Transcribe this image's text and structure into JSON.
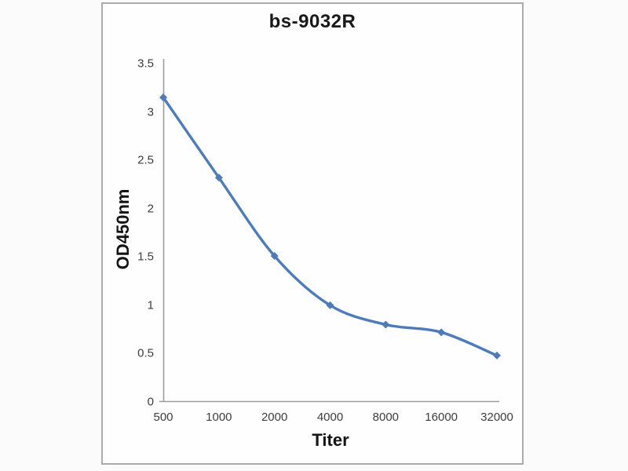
{
  "chart_data": {
    "type": "line",
    "title": "bs-9032R",
    "xlabel": "Titer",
    "ylabel": "OD450nm",
    "categories": [
      "500",
      "1000",
      "2000",
      "4000",
      "8000",
      "16000",
      "32000"
    ],
    "values": [
      3.15,
      2.32,
      1.51,
      1.0,
      0.8,
      0.72,
      0.48
    ],
    "ylim": [
      0,
      3.5
    ],
    "yticks": [
      "0",
      "0.5",
      "1",
      "1.5",
      "2",
      "2.5",
      "3",
      "3.5"
    ],
    "grid": "off",
    "legend": "none",
    "marker": "diamond",
    "smooth": true,
    "colors": {
      "line": "#4d7cb8",
      "marker": "#4d7cb8",
      "axis": "#9c9c9c",
      "tick_text": "#3d3d3d",
      "title_text": "#191919",
      "frame_border": "#ababab",
      "background": "#fefefe"
    }
  }
}
